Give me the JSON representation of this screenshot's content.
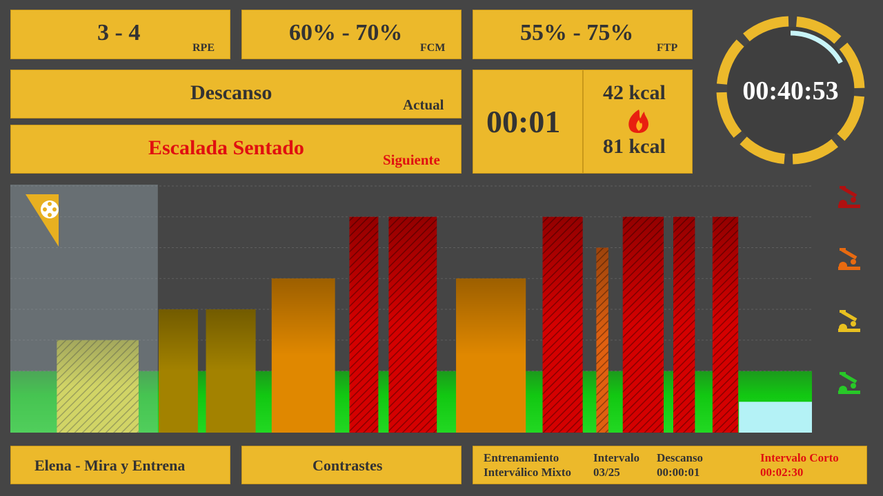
{
  "rpe": {
    "value": "3 - 4",
    "label": "RPE"
  },
  "fcm": {
    "value": "60% - 70%",
    "label": "FCM"
  },
  "ftp": {
    "value": "55% - 75%",
    "label": "FTP"
  },
  "current": {
    "name": "Descanso",
    "label": "Actual"
  },
  "next": {
    "name": "Escalada Sentado",
    "label": "Siguiente"
  },
  "interval_time": "00:01",
  "calories": {
    "top": "42 kcal",
    "bottom": "81 kcal"
  },
  "total_time": "00:40:53",
  "timer_progress": 0.17,
  "chart_data": {
    "type": "bar",
    "xlim": [
      0,
      100
    ],
    "ylim": [
      0,
      8
    ],
    "yticks": [
      2,
      3,
      4,
      5,
      6,
      7,
      8
    ],
    "grid": true,
    "base_level": 2,
    "elapsed": 18.4,
    "segments": [
      {
        "start": 5.8,
        "end": 16.0,
        "value": 3,
        "color": "#e6e032",
        "hatched": true
      },
      {
        "start": 18.5,
        "end": 23.4,
        "value": 4,
        "color": "#a38200",
        "hatched": false
      },
      {
        "start": 24.4,
        "end": 30.6,
        "value": 4,
        "color": "#a38200",
        "hatched": false
      },
      {
        "start": 32.6,
        "end": 40.5,
        "value": 5,
        "color": "#e08800",
        "hatched": false
      },
      {
        "start": 42.3,
        "end": 45.9,
        "value": 7,
        "color": "#d40000",
        "hatched": true
      },
      {
        "start": 47.2,
        "end": 53.2,
        "value": 7,
        "color": "#d40000",
        "hatched": true
      },
      {
        "start": 55.6,
        "end": 64.3,
        "value": 5,
        "color": "#e08800",
        "hatched": false
      },
      {
        "start": 66.4,
        "end": 71.4,
        "value": 7,
        "color": "#d40000",
        "hatched": true
      },
      {
        "start": 73.1,
        "end": 74.6,
        "value": 6,
        "color": "#e06010",
        "hatched": true
      },
      {
        "start": 76.4,
        "end": 81.5,
        "value": 7,
        "color": "#d40000",
        "hatched": true
      },
      {
        "start": 82.7,
        "end": 85.4,
        "value": 7,
        "color": "#d40000",
        "hatched": true
      },
      {
        "start": 87.6,
        "end": 90.8,
        "value": 7,
        "color": "#d40000",
        "hatched": true
      },
      {
        "start": 90.9,
        "end": 100,
        "value": 1,
        "color": "#b4f2f6",
        "hatched": false
      }
    ]
  },
  "footer": {
    "instructor": "Elena - Mira y Entrena",
    "session": "Contrastes",
    "workout": [
      "Entrenamiento",
      "Interválico Mixto"
    ],
    "interval": {
      "label": "Intervalo",
      "value": "03/25"
    },
    "rest": {
      "label": "Descanso",
      "value": "00:00:01"
    },
    "next_interval": {
      "label": "Intervalo Corto",
      "value": "00:02:30"
    }
  }
}
